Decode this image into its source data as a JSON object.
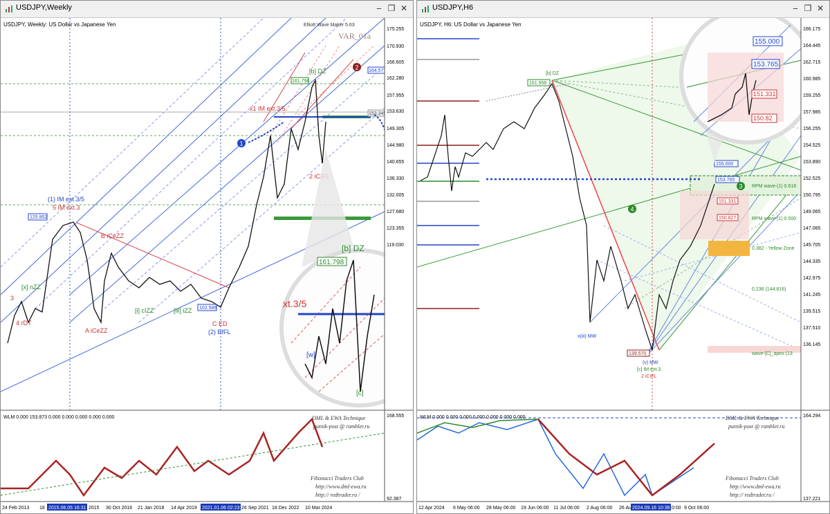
{
  "left": {
    "title": "USDJPY,Weekly",
    "subtitle": "USDJPY, Weekly:  US Dollar vs Japanese Yen",
    "indicator": "Elliott Wave Maker 5.63",
    "var_label": "VAR_01a",
    "price_ticks": [
      "175.255",
      "170.930",
      "166.605",
      "162.280",
      "157.955",
      "153.630",
      "149.305",
      "144.980",
      "140.655",
      "136.330",
      "132.005",
      "127.680",
      "123.355",
      "119.030"
    ],
    "wlm_ticks": [
      "168.555",
      "92.387"
    ],
    "price_tags": [
      "164.577",
      "153.345",
      "125.852",
      "102.586",
      "161.798"
    ],
    "date_ticks": [
      "24 Feb 2013",
      "18",
      "2015.06.05 16:31",
      "2015",
      "30 Oct 2016",
      "21 Jan 2018",
      "14 Apr 2019",
      "2021.01.06 02:23",
      "26 Sep 2021",
      "18 Dec 2022",
      "10 Mar 2024"
    ],
    "wlm_header": "WLM 0.000 153.873 0.000 0.000 0.000 0.000 0.000",
    "watermark": [
      "DML & EWA Technique",
      "putnik-post @ rambler.ru",
      "Fibonacci  Traders  Club",
      "http://www.dml-ewa.ru",
      "http:// redtrader.ru /"
    ],
    "wave_labels": [
      "(1) IM ext.3/5",
      "5 IM ext.3",
      "B iCeZZ",
      "A iCeZZ",
      "4 rDT",
      "3",
      "x1 IM ext.3/5",
      "(2) BfFL",
      "C ED",
      "[b] DZ",
      "2 iCIFL",
      "[x] nZZ",
      "[i] cIZZ",
      "[iii] iZZ"
    ],
    "zoom_labels": [
      "[b] DZ",
      "161.798",
      "xt.3/5",
      "[w]",
      "[c]"
    ],
    "markers": [
      "1",
      "2"
    ]
  },
  "right": {
    "title": "USDJPY,H6",
    "subtitle": "USDJPY, H6:  US Dollar vs Japanese Yen",
    "price_ticks": [
      "166.175",
      "164.445",
      "162.715",
      "160.985",
      "159.255",
      "157.985",
      "156.255",
      "154.525",
      "153.890",
      "152.525",
      "150.795",
      "149.065",
      "147.065",
      "145.705",
      "144.335",
      "142.975",
      "141.245",
      "139.515",
      "137.510",
      "136.145"
    ],
    "wlm_ticks": [
      "164.294",
      "137.221"
    ],
    "price_tags": [
      "155.000",
      "153.765",
      "151.331",
      "150.827",
      "139.570",
      "161.958"
    ],
    "date_ticks": [
      "12 Apr 2024",
      "6 May 06:00",
      "28 May 06:00",
      "19 Jun 06:00",
      "11 Jul 06:00",
      "2 Aug 06:00",
      "26 Au",
      "2024.09.16 10:36",
      "0:00",
      "9 Oct 06:00"
    ],
    "wlm_header": "WLM 0.000 0.000 0.000 0.000 0.000 0.000 0.000",
    "watermark": [
      "DML & EWA Technique",
      "putnik-post @ rambler.ru",
      "Fibonacci  Traders  Club",
      "http://www.dml-ewa.ru",
      "http:// redtrader.ru /"
    ],
    "annotations": [
      "RPM wave-(1) 0.618",
      "RPM wave-(1) 0.500",
      "0.382 - Yellow Zone",
      "0.236 (144.816)",
      "wave-[C]_apex (13",
      "x(iii) MW",
      "(v) MW",
      "[c] IM ext.3",
      "2 iCIFL",
      "[b] DZ"
    ],
    "zoom_tags": [
      "155.000",
      "153.765",
      "151.331",
      "150.82"
    ],
    "markers": [
      "3",
      "4"
    ]
  }
}
